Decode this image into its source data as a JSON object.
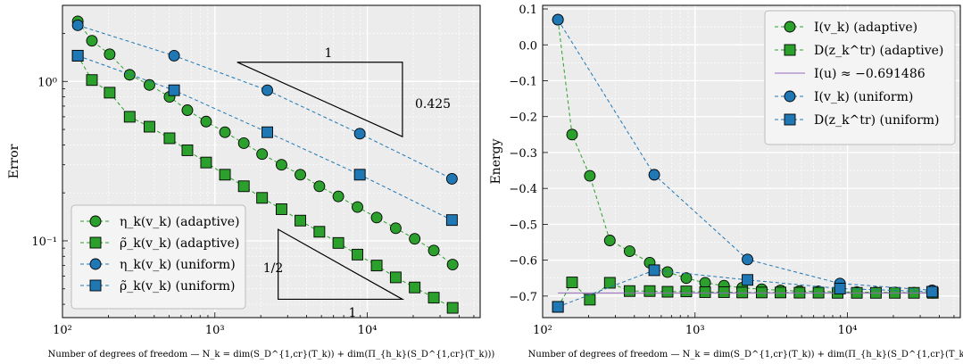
{
  "colors": {
    "green": "#2ca02c",
    "blue": "#1f77b4",
    "purple": "#9467bd",
    "panel_bg": "#ececec",
    "grid": "#ffffff"
  },
  "chart_data": [
    {
      "type": "line",
      "log_x": true,
      "log_y": true,
      "xlim": [
        100,
        55000
      ],
      "ylim": [
        0.033,
        3.0
      ],
      "xlabel": "Number of degrees of freedom — N_k = dim(S_D^{1,cr}(T_k)) + dim(Π_{h_k}(S_D^{1,cr}(T_k)))",
      "ylabel": "Error",
      "x_ticks": [
        "10²",
        "10³",
        "10⁴"
      ],
      "y_ticks": [
        "10⁰",
        "10⁻¹"
      ],
      "grid": true,
      "legend_position": "lower-left",
      "series": [
        {
          "name": "η_k(v_k) (adaptive)",
          "color": "green",
          "marker": "circle",
          "x": [
            126,
            156,
            204,
            276,
            372,
            504,
            660,
            876,
            1164,
            1548,
            2040,
            2736,
            3636,
            4848,
            6456,
            8616,
            11520,
            15360,
            20460,
            27300,
            36300
          ],
          "y": [
            2.38,
            1.8,
            1.48,
            1.1,
            0.95,
            0.8,
            0.66,
            0.56,
            0.48,
            0.41,
            0.35,
            0.3,
            0.26,
            0.22,
            0.19,
            0.163,
            0.14,
            0.12,
            0.103,
            0.087,
            0.071
          ]
        },
        {
          "name": "ρ̃_k(v_k) (adaptive)",
          "color": "green",
          "marker": "square",
          "x": [
            126,
            156,
            204,
            276,
            372,
            504,
            660,
            876,
            1164,
            1548,
            2040,
            2736,
            3636,
            4848,
            6456,
            8616,
            11520,
            15360,
            20460,
            27300,
            36300
          ],
          "y": [
            1.45,
            1.02,
            0.85,
            0.6,
            0.52,
            0.44,
            0.37,
            0.31,
            0.26,
            0.22,
            0.186,
            0.158,
            0.134,
            0.114,
            0.097,
            0.082,
            0.07,
            0.059,
            0.051,
            0.044,
            0.038
          ]
        },
        {
          "name": "η_k(v_k) (uniform)",
          "color": "blue",
          "marker": "circle",
          "x": [
            126,
            540,
            2208,
            8928,
            35904
          ],
          "y": [
            2.25,
            1.45,
            0.88,
            0.47,
            0.245
          ]
        },
        {
          "name": "ρ̃_k(v_k) (uniform)",
          "color": "blue",
          "marker": "square",
          "x": [
            126,
            540,
            2208,
            8928,
            35904
          ],
          "y": [
            1.45,
            0.88,
            0.48,
            0.26,
            0.135
          ]
        }
      ],
      "annotations": [
        {
          "type": "slope-triangle",
          "run_label": "1",
          "rise_label": "0.425",
          "x": [
            1400,
            17000
          ],
          "y": [
            1.32,
            0.45
          ]
        },
        {
          "type": "slope-triangle",
          "run_label": "1",
          "rise_label": "1/2",
          "x": [
            2600,
            17000
          ],
          "y": [
            0.118,
            0.043
          ]
        }
      ]
    },
    {
      "type": "line",
      "log_x": true,
      "log_y": false,
      "xlim": [
        100,
        55000
      ],
      "ylim": [
        -0.76,
        0.11
      ],
      "xlabel": "Number of degrees of freedom — N_k = dim(S_D^{1,cr}(T_k)) + dim(Π_{h_k}(S_D^{1,cr}(T_k)))",
      "ylabel": "Energy",
      "x_ticks": [
        "10²",
        "10³",
        "10⁴"
      ],
      "y_ticks": [
        0.1,
        0.0,
        -0.1,
        -0.2,
        -0.3,
        -0.4,
        -0.5,
        -0.6,
        -0.7
      ],
      "y_tick_labels": [
        "0.1",
        "0.0",
        "−0.1",
        "−0.2",
        "−0.3",
        "−0.4",
        "−0.5",
        "−0.6",
        "−0.7"
      ],
      "grid": true,
      "legend_position": "upper-right",
      "series": [
        {
          "name": "I(v_k) (adaptive)",
          "color": "green",
          "marker": "circle",
          "x": [
            126,
            156,
            204,
            276,
            372,
            504,
            660,
            876,
            1164,
            1548,
            2040,
            2736,
            3636,
            4848,
            6456,
            8616,
            11520,
            15360,
            20460,
            27300,
            36300
          ],
          "y": [
            0.07,
            -0.25,
            -0.365,
            -0.545,
            -0.575,
            -0.607,
            -0.633,
            -0.65,
            -0.663,
            -0.671,
            -0.677,
            -0.681,
            -0.684,
            -0.686,
            -0.687,
            -0.688,
            -0.689,
            -0.6895,
            -0.69,
            -0.6905,
            -0.691
          ]
        },
        {
          "name": "D(z_k^tr) (adaptive)",
          "color": "green",
          "marker": "square",
          "x": [
            126,
            156,
            204,
            276,
            372,
            504,
            660,
            876,
            1164,
            1548,
            2040,
            2736,
            3636,
            4848,
            6456,
            8616,
            11520,
            15360,
            20460,
            27300,
            36300
          ],
          "y": [
            -0.73,
            -0.662,
            -0.71,
            -0.663,
            -0.686,
            -0.686,
            -0.688,
            -0.687,
            -0.689,
            -0.689,
            -0.69,
            -0.69,
            -0.69,
            -0.6905,
            -0.6905,
            -0.691,
            -0.691,
            -0.691,
            -0.691,
            -0.691,
            -0.691
          ]
        },
        {
          "name": "I(u) ≈ −0.691486",
          "color": "purple",
          "marker": "none",
          "x": [
            126,
            36300
          ],
          "y": [
            -0.691486,
            -0.691486
          ]
        },
        {
          "name": "I(v_k) (uniform)",
          "color": "blue",
          "marker": "circle",
          "x": [
            126,
            540,
            2208,
            8928,
            35904
          ],
          "y": [
            0.07,
            -0.362,
            -0.598,
            -0.665,
            -0.684
          ]
        },
        {
          "name": "D(z_k^tr) (uniform)",
          "color": "blue",
          "marker": "square",
          "x": [
            126,
            540,
            2208,
            8928,
            35904
          ],
          "y": [
            -0.73,
            -0.628,
            -0.655,
            -0.679,
            -0.688
          ]
        }
      ]
    }
  ]
}
